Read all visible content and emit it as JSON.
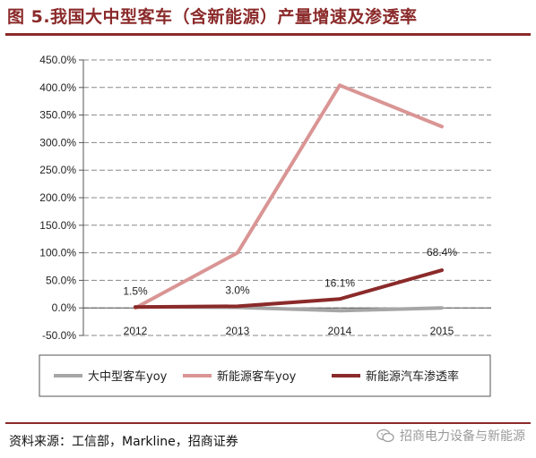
{
  "figure": {
    "title": "图 5.我国大中型客车（含新能源）产量增速及渗透率",
    "source": "资料来源：工信部，Markline，招商证券",
    "watermark": "招商电力设备与新能源"
  },
  "colors": {
    "rule": "#8b2a2a",
    "series": [
      "#a6a6a6",
      "#d99594",
      "#8b2a2a"
    ],
    "grid": "#888888"
  },
  "chart_data": {
    "type": "line",
    "categories": [
      "2012",
      "2013",
      "2014",
      "2015"
    ],
    "ylim": [
      -50,
      450
    ],
    "yticks": [
      -50,
      0,
      50,
      100,
      150,
      200,
      250,
      300,
      350,
      400,
      450
    ],
    "ytick_labels": [
      "-50.0%",
      "0.0%",
      "50.0%",
      "100.0%",
      "150.0%",
      "200.0%",
      "250.0%",
      "300.0%",
      "350.0%",
      "400.0%",
      "450.0%"
    ],
    "grid": true,
    "legend_position": "bottom",
    "series": [
      {
        "name": "大中型客车yoy",
        "values": [
          2,
          1,
          -5,
          0
        ]
      },
      {
        "name": "新能源客车yoy",
        "values": [
          0,
          100,
          404,
          329
        ]
      },
      {
        "name": "新能源汽车渗透率",
        "values": [
          1.5,
          3.0,
          16.1,
          68.4
        ],
        "labels": [
          "1.5%",
          "3.0%",
          "16.1%",
          "68.4%"
        ]
      }
    ]
  }
}
